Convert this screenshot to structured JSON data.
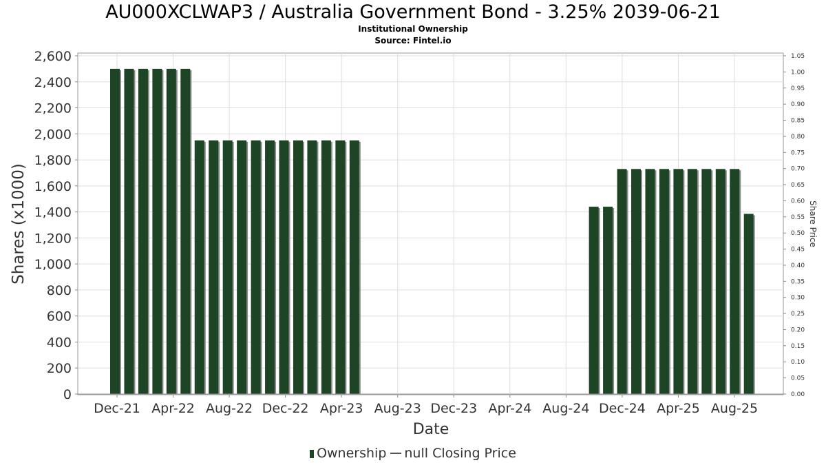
{
  "chart_data": {
    "type": "bar",
    "title": "AU000XCLWAP3 / Australia Government Bond - 3.25% 2039-06-21",
    "subtitle_lines": [
      "Institutional Ownership",
      "Source: Fintel.io"
    ],
    "xlabel": "Date",
    "ylabel": "Shares (x1000)",
    "y2label": "Share Price",
    "ylim": [
      0,
      2600
    ],
    "y2lim": [
      0,
      1.05
    ],
    "yticks": [
      0,
      200,
      400,
      600,
      800,
      1000,
      1200,
      1400,
      1600,
      1800,
      2000,
      2200,
      2400,
      2600
    ],
    "ytick_labels": [
      "0",
      "200",
      "400",
      "600",
      "800",
      "1,000",
      "1,200",
      "1,400",
      "1,600",
      "1,800",
      "2,000",
      "2,200",
      "2,400",
      "2,600"
    ],
    "y2ticks": [
      "0.00",
      "0.05",
      "0.10",
      "0.15",
      "0.20",
      "0.25",
      "0.30",
      "0.35",
      "0.40",
      "0.45",
      "0.50",
      "0.55",
      "0.60",
      "0.65",
      "0.70",
      "0.75",
      "0.80",
      "0.85",
      "0.90",
      "0.95",
      "1.00",
      "1.05"
    ],
    "xtick_labels": [
      "Dec-21",
      "Apr-22",
      "Aug-22",
      "Dec-22",
      "Apr-23",
      "Aug-23",
      "Dec-23",
      "Apr-24",
      "Aug-24",
      "Dec-24",
      "Apr-25",
      "Aug-25"
    ],
    "grid": true,
    "legend_position": "bottom",
    "series": [
      {
        "name": "Ownership",
        "color": "#1e4426",
        "values": [
          2500,
          2500,
          2500,
          2500,
          2500,
          2500,
          1950,
          1950,
          1950,
          1950,
          1950,
          1950,
          1950,
          1950,
          1950,
          1950,
          1950,
          1950,
          0,
          0,
          0,
          0,
          0,
          0,
          0,
          0,
          0,
          0,
          0,
          0,
          0,
          0,
          0,
          0,
          1440,
          1440,
          1730,
          1730,
          1730,
          1730,
          1730,
          1730,
          1730,
          1730,
          1730,
          1385
        ]
      },
      {
        "name": "null Closing Price",
        "color": "#555555",
        "values": []
      }
    ]
  }
}
